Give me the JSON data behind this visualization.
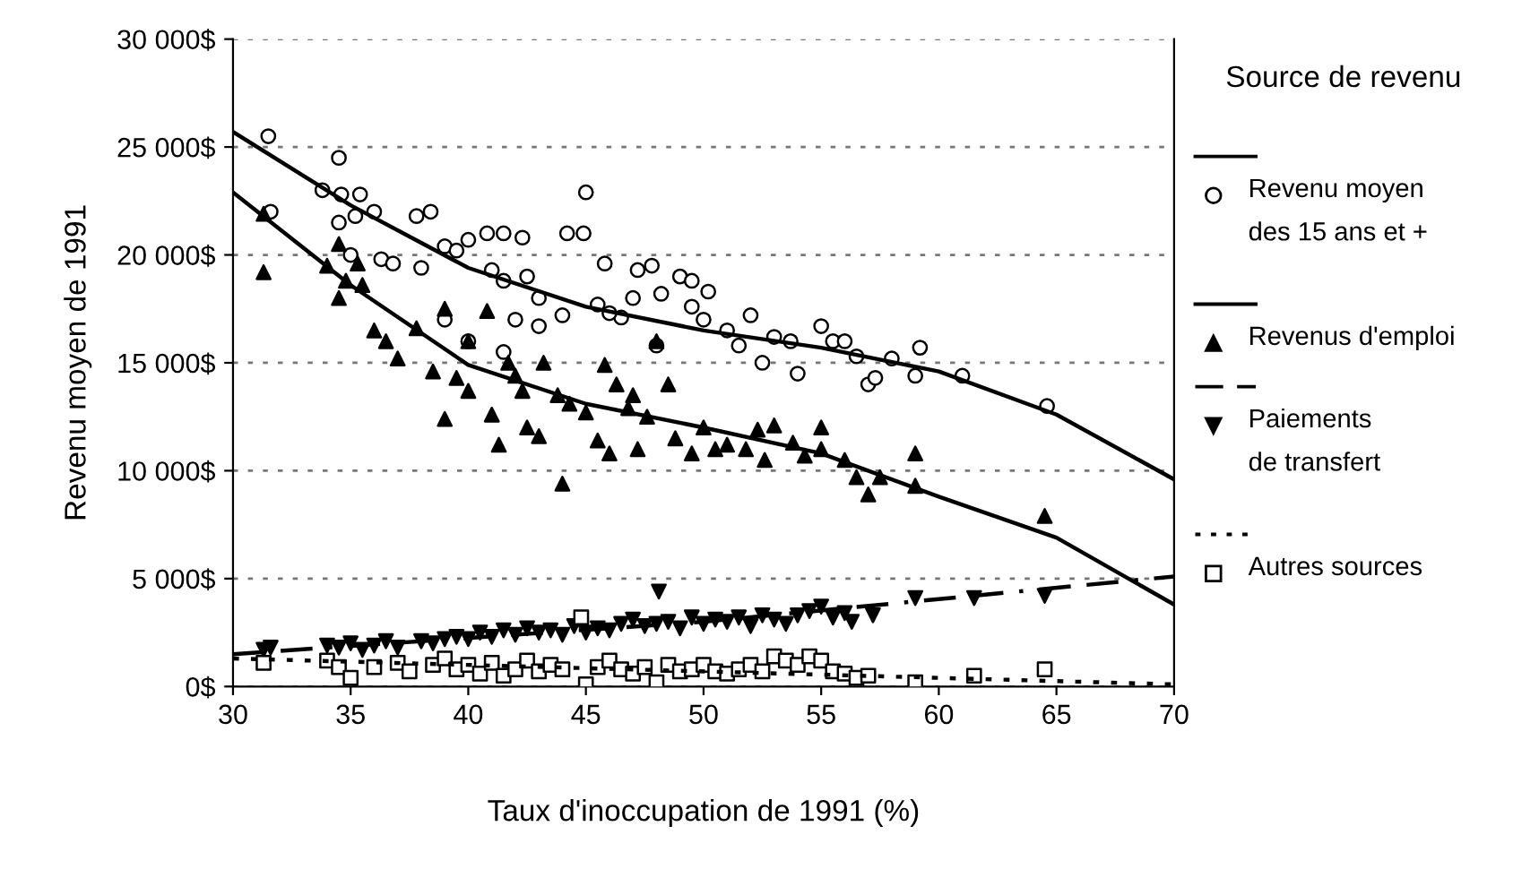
{
  "chart_data": {
    "type": "scatter",
    "xlabel": "Taux d'inoccupation de 1991 (%)",
    "ylabel": "Revenu moyen de 1991",
    "legend_title": "Source de revenu",
    "legend": "right",
    "grid": "y",
    "xlim": [
      30,
      70
    ],
    "ylim": [
      0,
      30000
    ],
    "xticks": [
      30,
      35,
      40,
      45,
      50,
      55,
      60,
      65,
      70
    ],
    "yticks": [
      {
        "value": 0,
        "label": "0$"
      },
      {
        "value": 5000,
        "label": "5 000$"
      },
      {
        "value": 10000,
        "label": "10 000$"
      },
      {
        "value": 15000,
        "label": "15 000$"
      },
      {
        "value": 20000,
        "label": "20 000$"
      },
      {
        "value": 25000,
        "label": "25 000$"
      },
      {
        "value": 30000,
        "label": "30 000$"
      }
    ],
    "series": [
      {
        "name": "Revenu moyen\ndes 15 ans et +",
        "marker": "circle",
        "color": "#000000",
        "x": [
          31.5,
          31.6,
          33.8,
          34.5,
          34.6,
          35.4,
          35.2,
          36,
          34.5,
          35,
          36.3,
          37.8,
          38.4,
          39,
          39.5,
          40,
          40.8,
          41.5,
          42.3,
          44.2,
          44.9,
          45,
          45.8,
          47.2,
          47.8,
          48.2,
          49,
          49.5,
          50.2,
          47,
          41,
          41.5,
          42.5,
          43,
          42,
          39,
          38,
          40,
          41.5,
          43,
          44,
          45.5,
          46.5,
          50,
          51,
          51.5,
          52,
          53,
          53.7,
          54,
          55,
          55.5,
          56,
          56.5,
          57,
          57.3,
          58,
          59,
          59.2,
          61,
          64.6,
          36.8,
          46,
          48,
          49.5,
          52.5
        ],
        "values": [
          25500,
          22000,
          23000,
          24500,
          22800,
          22800,
          21800,
          22000,
          21500,
          20000,
          19800,
          21800,
          22000,
          20400,
          20200,
          20700,
          21000,
          21000,
          20800,
          21000,
          21000,
          22900,
          19600,
          19300,
          19500,
          18200,
          19000,
          18800,
          18300,
          18000,
          19300,
          18800,
          19000,
          18000,
          17000,
          17000,
          19400,
          16000,
          15500,
          16700,
          17200,
          17700,
          17100,
          17000,
          16500,
          15800,
          17200,
          16200,
          16000,
          14500,
          16700,
          16000,
          16000,
          15300,
          14000,
          14300,
          15200,
          14400,
          15700,
          14400,
          13000,
          19600,
          17300,
          15800,
          17600,
          15000
        ]
      },
      {
        "type": "line",
        "line_style": "solid",
        "color": "#000000",
        "x": [
          30,
          35,
          40,
          45,
          50,
          55,
          60,
          65,
          70
        ],
        "values": [
          25700,
          22300,
          19400,
          17600,
          16500,
          15700,
          14600,
          12600,
          9600
        ]
      },
      {
        "name": "Revenus d'emploi",
        "marker": "triangle",
        "color": "#000000",
        "x": [
          31.3,
          31.3,
          34,
          34.5,
          34.8,
          34.5,
          35.3,
          35.5,
          36,
          36.5,
          37,
          37.8,
          38.5,
          39,
          39.5,
          40,
          40,
          41,
          41.3,
          41.7,
          42,
          42.3,
          42.5,
          43,
          43.2,
          43.8,
          44.3,
          45,
          45.5,
          45.8,
          46.3,
          46.8,
          47.2,
          47.6,
          48,
          48.5,
          48.8,
          49.5,
          50,
          50.5,
          51,
          51.8,
          52.3,
          52.6,
          53,
          53.8,
          54.3,
          55,
          55,
          56,
          56.5,
          57,
          57.5,
          59,
          59,
          64.5,
          44,
          40.8,
          39,
          46,
          47
        ],
        "values": [
          21900,
          19200,
          19500,
          20500,
          18800,
          18000,
          19600,
          18600,
          16500,
          16000,
          15200,
          16600,
          14600,
          17500,
          14300,
          16000,
          13700,
          12600,
          11200,
          15000,
          14400,
          13700,
          12000,
          11600,
          15000,
          13500,
          13100,
          12700,
          11400,
          14900,
          14000,
          12900,
          11000,
          12500,
          16000,
          14000,
          11500,
          10800,
          12000,
          11000,
          11200,
          11000,
          11900,
          10500,
          12100,
          11300,
          10700,
          12000,
          11000,
          10500,
          9700,
          8900,
          9700,
          10800,
          9300,
          7900,
          9400,
          17400,
          12400,
          10800,
          13500
        ]
      },
      {
        "type": "line",
        "line_style": "solid",
        "color": "#000000",
        "x": [
          30,
          35,
          40,
          45,
          50,
          55,
          60,
          65,
          70
        ],
        "values": [
          22900,
          18600,
          14900,
          13100,
          12000,
          10800,
          8800,
          6900,
          3800
        ]
      },
      {
        "name": "Paiements\nde transfert",
        "marker": "triangle_down",
        "color": "#000000",
        "x": [
          31.3,
          31.6,
          34,
          34.5,
          35,
          35.5,
          36,
          36.5,
          37,
          38,
          38.5,
          39,
          39.5,
          40,
          40.5,
          41,
          41.5,
          42,
          42.5,
          43,
          43.5,
          44,
          44.5,
          45,
          45.5,
          46,
          46.5,
          47,
          47.5,
          48,
          48.1,
          48.5,
          49,
          49.5,
          50,
          50.5,
          51,
          51.5,
          52,
          52.5,
          53,
          53.5,
          54,
          54.5,
          55,
          55.5,
          56,
          56.3,
          57.2,
          59,
          61.5,
          64.5
        ],
        "values": [
          1700,
          1800,
          1900,
          1800,
          2000,
          1700,
          1900,
          2100,
          1800,
          2100,
          2000,
          2200,
          2300,
          2200,
          2500,
          2300,
          2600,
          2400,
          2700,
          2500,
          2600,
          2400,
          2800,
          2500,
          2700,
          2600,
          2900,
          3100,
          2800,
          2900,
          4400,
          3000,
          2700,
          3200,
          2900,
          3100,
          3000,
          3200,
          2800,
          3300,
          3100,
          2900,
          3300,
          3500,
          3700,
          3200,
          3400,
          3000,
          3300,
          4100,
          4100,
          4200
        ]
      },
      {
        "type": "line",
        "line_style": "dashed",
        "color": "#000000",
        "x": [
          30,
          50,
          70
        ],
        "values": [
          1500,
          3000,
          5100
        ]
      },
      {
        "name": "Autres sources",
        "marker": "square",
        "color": "#000000",
        "x": [
          31.3,
          34,
          34.5,
          35,
          36,
          37,
          37.5,
          38.5,
          39,
          39.5,
          40,
          40.5,
          41,
          41.5,
          42,
          42.5,
          43,
          43.5,
          44,
          44.8,
          45,
          45.5,
          46,
          46.5,
          47,
          47.5,
          48,
          48.5,
          49,
          49.5,
          50,
          50.5,
          51,
          51.5,
          52,
          52.5,
          53,
          53.5,
          54,
          54.5,
          55,
          55.5,
          56,
          56.5,
          57,
          59,
          61.5,
          64.5
        ],
        "values": [
          1100,
          1200,
          900,
          400,
          900,
          1100,
          700,
          1000,
          1300,
          800,
          1000,
          600,
          1100,
          500,
          800,
          1200,
          700,
          1000,
          800,
          3200,
          100,
          900,
          1200,
          800,
          600,
          900,
          200,
          1000,
          700,
          800,
          1000,
          700,
          600,
          800,
          1000,
          700,
          1400,
          1200,
          1000,
          1400,
          1200,
          700,
          600,
          400,
          500,
          200,
          500,
          800
        ]
      },
      {
        "type": "line",
        "line_style": "dotted",
        "color": "#000000",
        "x": [
          30,
          70
        ],
        "values": [
          1300,
          100
        ]
      }
    ]
  }
}
